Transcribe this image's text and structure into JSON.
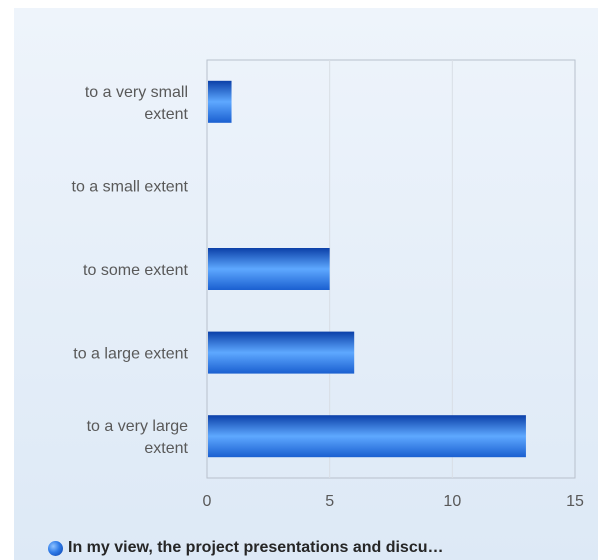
{
  "chart_data": {
    "type": "bar",
    "orientation": "horizontal",
    "categories": [
      "to a very small\nextent",
      "to a small extent",
      "to some extent",
      "to a large extent",
      "to a very large\nextent"
    ],
    "series": [
      {
        "name": "In my view, the project presentations and discu…",
        "values": [
          1,
          0,
          5,
          6,
          13
        ]
      }
    ],
    "xlim": [
      0,
      15
    ],
    "x_ticks": [
      "0",
      "5",
      "10",
      "15"
    ],
    "grid": true,
    "legend_position": "bottom",
    "colors": {
      "bar_dark": "#0b3fa8",
      "bar_light": "#5ea8ff",
      "grid": "#d9dee5",
      "axis": "#b8c0cc"
    }
  }
}
